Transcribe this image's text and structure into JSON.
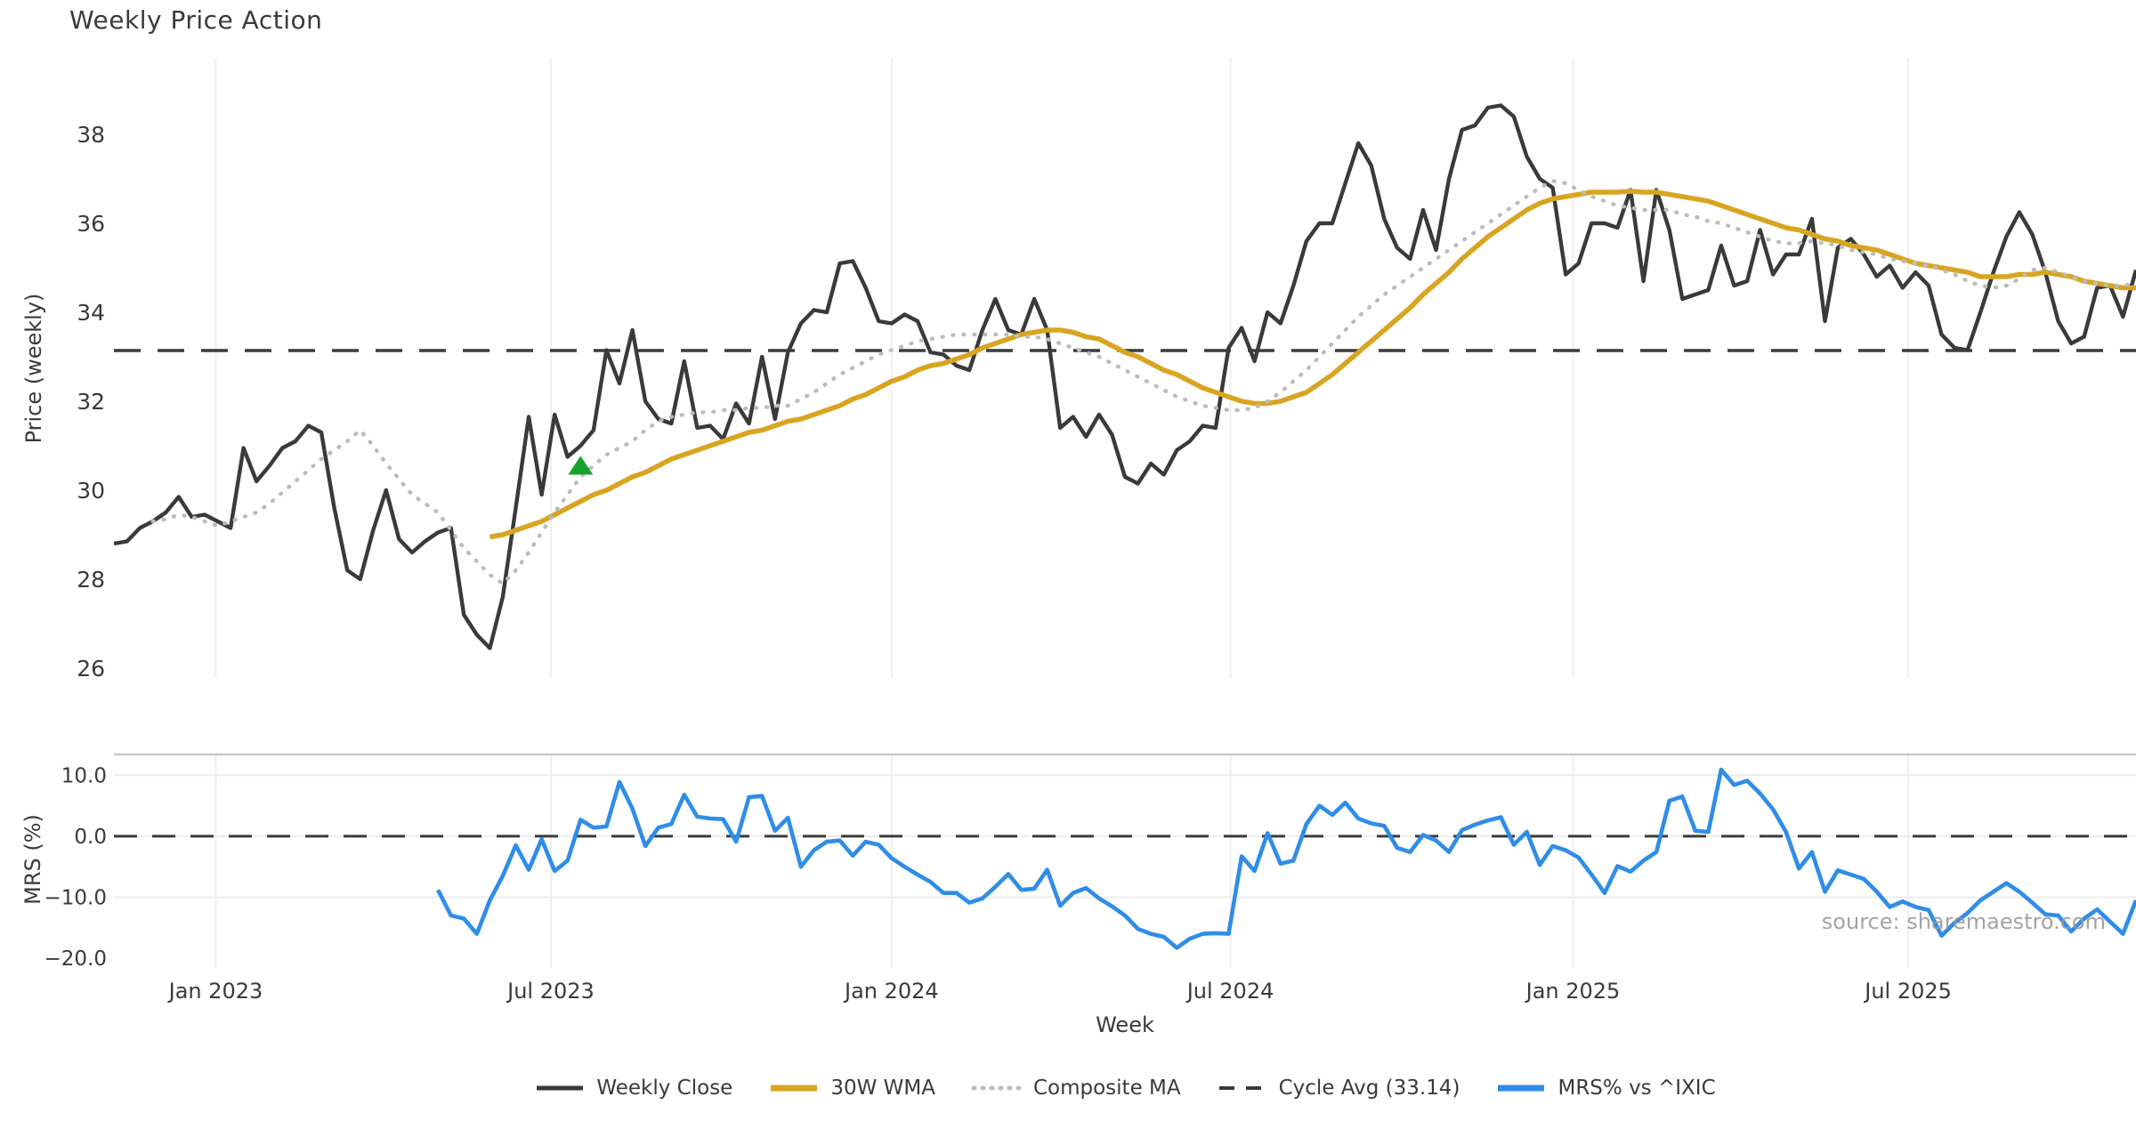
{
  "title": "Weekly Price Action",
  "source_note": "source: sharemaestro.com",
  "colors": {
    "close": "#3a3a3a",
    "wma": "#d9a521",
    "composite": "#bcbcbc",
    "cycle_avg": "#3a3a3a",
    "mrs": "#2f8de8",
    "marker": "#17a32b",
    "grid": "#efefef",
    "grid_soft": "#ececec",
    "panel_spine": "#c9c9c9",
    "text": "#3a3a3a",
    "source_text": "#9a9a9a"
  },
  "price_panel": {
    "ylabel": "Price (weekly)",
    "yticks": [
      26,
      28,
      30,
      32,
      34,
      36,
      38
    ],
    "ylim": [
      25.78,
      39.72
    ]
  },
  "mrs_panel": {
    "ylabel": "MRS (%)",
    "yticks": [
      {
        "value": 10,
        "label": "10.0"
      },
      {
        "value": 0,
        "label": "0.0"
      },
      {
        "value": -10,
        "label": "−10.0"
      },
      {
        "value": -20,
        "label": "−20.0"
      }
    ],
    "ylim": [
      -21.6,
      13.4
    ]
  },
  "xaxis": {
    "label": "Week",
    "week_range": [
      0,
      156
    ],
    "ticks": [
      {
        "week": 7.86,
        "label": "Jan 2023"
      },
      {
        "week": 33.71,
        "label": "Jul 2023"
      },
      {
        "week": 60.0,
        "label": "Jan 2024"
      },
      {
        "week": 86.14,
        "label": "Jul 2024"
      },
      {
        "week": 112.57,
        "label": "Jan 2025"
      },
      {
        "week": 138.43,
        "label": "Jul 2025"
      }
    ]
  },
  "legend": {
    "items": [
      {
        "label": "Weekly Close",
        "style": "solid",
        "color_key": "close",
        "width": 5
      },
      {
        "label": "30W WMA",
        "style": "solid",
        "color_key": "wma",
        "width": 7
      },
      {
        "label": "Composite MA",
        "style": "dotted",
        "color_key": "composite",
        "width": 5
      },
      {
        "label": "Cycle Avg (33.14)",
        "style": "dashed",
        "color_key": "cycle_avg",
        "width": 4
      },
      {
        "label": "MRS% vs ^IXIC",
        "style": "solid",
        "color_key": "mrs",
        "width": 7
      }
    ]
  },
  "chart_data": {
    "type": "line",
    "title": "Weekly Price Action",
    "xlabel": "Week",
    "ylabel_top": "Price (weekly)",
    "ylabel_bottom": "MRS (%)",
    "legend_position": "bottom-center",
    "grid": "vertical-both-panels",
    "cycle_avg": 33.14,
    "mrs_zero_line": 0,
    "marker": {
      "type": "triangle-up",
      "week": 36,
      "value": 30.55
    },
    "series": [
      {
        "name": "Weekly Close",
        "panel": "price",
        "start_week": 0,
        "values": [
          28.8,
          28.85,
          29.15,
          29.3,
          29.5,
          29.85,
          29.4,
          29.45,
          29.3,
          29.15,
          30.95,
          30.2,
          30.55,
          30.95,
          31.1,
          31.45,
          31.3,
          29.6,
          28.2,
          28.0,
          29.1,
          30.0,
          28.9,
          28.6,
          28.85,
          29.05,
          29.15,
          27.2,
          26.75,
          26.45,
          27.6,
          29.6,
          31.65,
          29.9,
          31.7,
          30.75,
          31.0,
          31.35,
          33.15,
          32.4,
          33.6,
          32.0,
          31.6,
          31.5,
          32.9,
          31.4,
          31.45,
          31.15,
          31.95,
          31.5,
          33.0,
          31.6,
          33.1,
          33.75,
          34.05,
          34.0,
          35.1,
          35.15,
          34.55,
          33.8,
          33.75,
          33.95,
          33.8,
          33.1,
          33.05,
          32.8,
          32.7,
          33.6,
          34.3,
          33.6,
          33.5,
          34.3,
          33.6,
          31.4,
          31.65,
          31.2,
          31.7,
          31.25,
          30.3,
          30.15,
          30.6,
          30.35,
          30.9,
          31.1,
          31.45,
          31.4,
          33.2,
          33.65,
          32.9,
          34.0,
          33.75,
          34.6,
          35.6,
          36.0,
          36.0,
          36.9,
          37.8,
          37.3,
          36.1,
          35.45,
          35.2,
          36.3,
          35.4,
          37.0,
          38.1,
          38.2,
          38.6,
          38.65,
          38.4,
          37.5,
          37.0,
          36.8,
          34.85,
          35.1,
          36.0,
          36.0,
          35.9,
          36.75,
          34.7,
          36.75,
          35.85,
          34.3,
          34.4,
          34.5,
          35.5,
          34.6,
          34.7,
          35.85,
          34.85,
          35.3,
          35.3,
          36.1,
          33.8,
          35.45,
          35.65,
          35.3,
          34.8,
          35.05,
          34.55,
          34.9,
          34.6,
          33.5,
          33.2,
          33.15,
          34.0,
          34.9,
          35.7,
          36.25,
          35.75,
          34.9,
          33.8,
          33.3,
          33.45,
          34.55,
          34.6,
          33.9,
          34.95
        ]
      },
      {
        "name": "30W WMA",
        "panel": "price",
        "start_week": 29,
        "values": [
          28.95,
          29.0,
          29.1,
          29.2,
          29.3,
          29.45,
          29.6,
          29.75,
          29.9,
          30.0,
          30.15,
          30.3,
          30.4,
          30.55,
          30.7,
          30.8,
          30.9,
          31.0,
          31.1,
          31.2,
          31.3,
          31.35,
          31.45,
          31.55,
          31.6,
          31.7,
          31.8,
          31.9,
          32.05,
          32.15,
          32.3,
          32.45,
          32.55,
          32.7,
          32.8,
          32.85,
          32.95,
          33.05,
          33.2,
          33.3,
          33.4,
          33.5,
          33.55,
          33.6,
          33.6,
          33.55,
          33.45,
          33.4,
          33.25,
          33.1,
          33.0,
          32.85,
          32.7,
          32.6,
          32.45,
          32.3,
          32.2,
          32.1,
          32.0,
          31.95,
          31.95,
          32.0,
          32.1,
          32.2,
          32.4,
          32.6,
          32.85,
          33.1,
          33.35,
          33.6,
          33.85,
          34.1,
          34.4,
          34.65,
          34.9,
          35.2,
          35.45,
          35.7,
          35.9,
          36.1,
          36.3,
          36.45,
          36.55,
          36.6,
          36.65,
          36.7,
          36.7,
          36.7,
          36.72,
          36.7,
          36.7,
          36.65,
          36.6,
          36.55,
          36.5,
          36.4,
          36.3,
          36.2,
          36.1,
          36.0,
          35.9,
          35.85,
          35.75,
          35.65,
          35.6,
          35.5,
          35.45,
          35.4,
          35.3,
          35.2,
          35.1,
          35.05,
          35.0,
          34.95,
          34.9,
          34.8,
          34.8,
          34.8,
          34.85,
          34.85,
          34.9,
          34.85,
          34.8,
          34.7,
          34.65,
          34.6,
          34.55,
          34.55
        ]
      },
      {
        "name": "Composite MA",
        "panel": "price",
        "start_week": 3,
        "values": [
          29.3,
          29.35,
          29.45,
          29.4,
          29.3,
          29.2,
          29.3,
          29.4,
          29.5,
          29.7,
          29.95,
          30.2,
          30.45,
          30.7,
          30.9,
          31.1,
          31.35,
          31.0,
          30.6,
          30.25,
          29.9,
          29.7,
          29.5,
          29.1,
          28.7,
          28.4,
          28.1,
          27.9,
          28.2,
          28.6,
          29.05,
          29.5,
          29.9,
          30.3,
          30.55,
          30.8,
          30.95,
          31.1,
          31.35,
          31.55,
          31.65,
          31.7,
          31.75,
          31.75,
          31.8,
          31.8,
          31.85,
          31.85,
          31.9,
          31.9,
          32.05,
          32.2,
          32.4,
          32.6,
          32.75,
          32.9,
          33.05,
          33.15,
          33.25,
          33.35,
          33.4,
          33.45,
          33.5,
          33.5,
          33.5,
          33.5,
          33.5,
          33.45,
          33.45,
          33.4,
          33.3,
          33.2,
          33.1,
          33.0,
          32.85,
          32.7,
          32.55,
          32.4,
          32.25,
          32.1,
          32.0,
          31.9,
          31.85,
          31.8,
          31.8,
          31.85,
          32.0,
          32.2,
          32.45,
          32.7,
          33.0,
          33.3,
          33.6,
          33.9,
          34.15,
          34.4,
          34.6,
          34.8,
          35.0,
          35.2,
          35.4,
          35.6,
          35.8,
          36.0,
          36.2,
          36.4,
          36.6,
          36.8,
          36.95,
          36.9,
          36.75,
          36.6,
          36.5,
          36.4,
          36.35,
          36.3,
          36.3,
          36.3,
          36.2,
          36.15,
          36.05,
          36.0,
          35.9,
          35.8,
          35.7,
          35.6,
          35.55,
          35.55,
          35.6,
          35.55,
          35.5,
          35.4,
          35.35,
          35.3,
          35.2,
          35.15,
          35.1,
          35.05,
          34.95,
          34.85,
          34.7,
          34.6,
          34.55,
          34.6,
          34.75,
          34.95,
          35.0,
          34.9,
          34.8,
          34.7,
          34.65,
          34.6,
          34.6,
          34.65
        ]
      },
      {
        "name": "MRS% vs ^IXIC",
        "panel": "mrs",
        "start_week": 25,
        "values": [
          -8.8,
          -13.0,
          -13.5,
          -16.0,
          -10.5,
          -6.5,
          -1.5,
          -5.5,
          -0.5,
          -5.7,
          -4.0,
          2.7,
          1.4,
          1.6,
          8.9,
          4.5,
          -1.6,
          1.4,
          2.0,
          6.8,
          3.2,
          2.9,
          2.8,
          -0.9,
          6.4,
          6.6,
          0.9,
          3.0,
          -5.0,
          -2.3,
          -0.9,
          -0.7,
          -3.2,
          -0.9,
          -1.4,
          -3.6,
          -5.0,
          -6.3,
          -7.5,
          -9.3,
          -9.3,
          -10.9,
          -10.2,
          -8.3,
          -6.2,
          -8.8,
          -8.6,
          -5.5,
          -11.4,
          -9.3,
          -8.5,
          -10.2,
          -11.5,
          -13.0,
          -15.2,
          -16.0,
          -16.5,
          -18.3,
          -16.8,
          -16.0,
          -15.9,
          -16.0,
          -3.3,
          -5.7,
          0.5,
          -4.5,
          -4.0,
          2.0,
          5.0,
          3.5,
          5.5,
          2.9,
          2.1,
          1.7,
          -1.9,
          -2.6,
          0.2,
          -0.7,
          -2.6,
          1.0,
          1.9,
          2.6,
          3.1,
          -1.4,
          0.7,
          -4.7,
          -1.6,
          -2.3,
          -3.5,
          -6.3,
          -9.3,
          -4.9,
          -5.8,
          -4.0,
          -2.6,
          5.8,
          6.5,
          0.9,
          0.7,
          10.9,
          8.4,
          9.1,
          7.0,
          4.4,
          0.7,
          -5.3,
          -2.6,
          -9.1,
          -5.6,
          -6.3,
          -7.0,
          -9.1,
          -11.6,
          -10.7,
          -11.6,
          -12.1,
          -16.3,
          -14.2,
          -12.6,
          -10.5,
          -9.1,
          -7.7,
          -9.1,
          -10.9,
          -12.8,
          -13.0,
          -15.6,
          -13.5,
          -12.0,
          -14.0,
          -16.0,
          -10.5
        ]
      }
    ]
  }
}
